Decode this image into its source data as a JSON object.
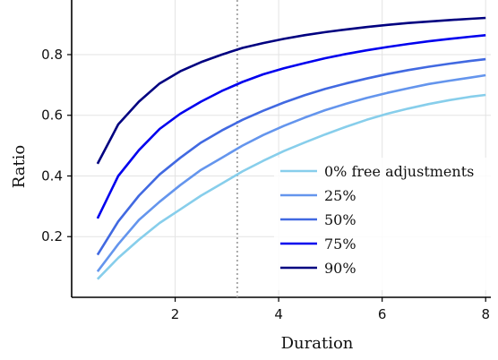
{
  "chart_data": {
    "type": "line",
    "xlabel": "Duration",
    "ylabel": "Ratio",
    "xlim": [
      0.0,
      8.1
    ],
    "ylim": [
      0.0,
      0.98
    ],
    "xticks": [
      2,
      4,
      6,
      8
    ],
    "yticks": [
      0.2,
      0.4,
      0.6,
      0.8
    ],
    "grid": true,
    "legend_position": "lower-right",
    "reference_line": {
      "x": 3.2,
      "style": "dotted",
      "color": "#a8a8a8"
    },
    "x": [
      0.5,
      0.9,
      1.3,
      1.7,
      2.1,
      2.5,
      2.9,
      3.3,
      3.7,
      4.1,
      4.5,
      4.9,
      5.3,
      5.7,
      6.1,
      6.5,
      6.9,
      7.3,
      7.7,
      8.0
    ],
    "series": [
      {
        "name": "0% free adjustments",
        "color": "#87ceeb",
        "values": [
          0.06,
          0.13,
          0.19,
          0.245,
          0.29,
          0.335,
          0.375,
          0.415,
          0.45,
          0.482,
          0.51,
          0.537,
          0.562,
          0.585,
          0.605,
          0.622,
          0.637,
          0.65,
          0.661,
          0.667
        ]
      },
      {
        "name": "25%",
        "color": "#6495ed",
        "values": [
          0.085,
          0.175,
          0.255,
          0.315,
          0.37,
          0.42,
          0.46,
          0.5,
          0.535,
          0.565,
          0.592,
          0.617,
          0.638,
          0.657,
          0.674,
          0.689,
          0.703,
          0.714,
          0.724,
          0.732
        ]
      },
      {
        "name": "50%",
        "color": "#4169e1",
        "values": [
          0.14,
          0.25,
          0.335,
          0.405,
          0.46,
          0.51,
          0.55,
          0.585,
          0.615,
          0.642,
          0.666,
          0.687,
          0.705,
          0.721,
          0.736,
          0.749,
          0.76,
          0.77,
          0.779,
          0.785
        ]
      },
      {
        "name": "75%",
        "color": "#0000ee",
        "values": [
          0.26,
          0.4,
          0.485,
          0.555,
          0.605,
          0.645,
          0.68,
          0.71,
          0.735,
          0.755,
          0.772,
          0.788,
          0.802,
          0.814,
          0.825,
          0.835,
          0.844,
          0.852,
          0.859,
          0.864
        ]
      },
      {
        "name": "90%",
        "color": "#000080",
        "values": [
          0.44,
          0.57,
          0.645,
          0.705,
          0.745,
          0.775,
          0.8,
          0.822,
          0.838,
          0.852,
          0.864,
          0.874,
          0.883,
          0.891,
          0.898,
          0.904,
          0.909,
          0.914,
          0.918,
          0.921
        ]
      }
    ]
  }
}
